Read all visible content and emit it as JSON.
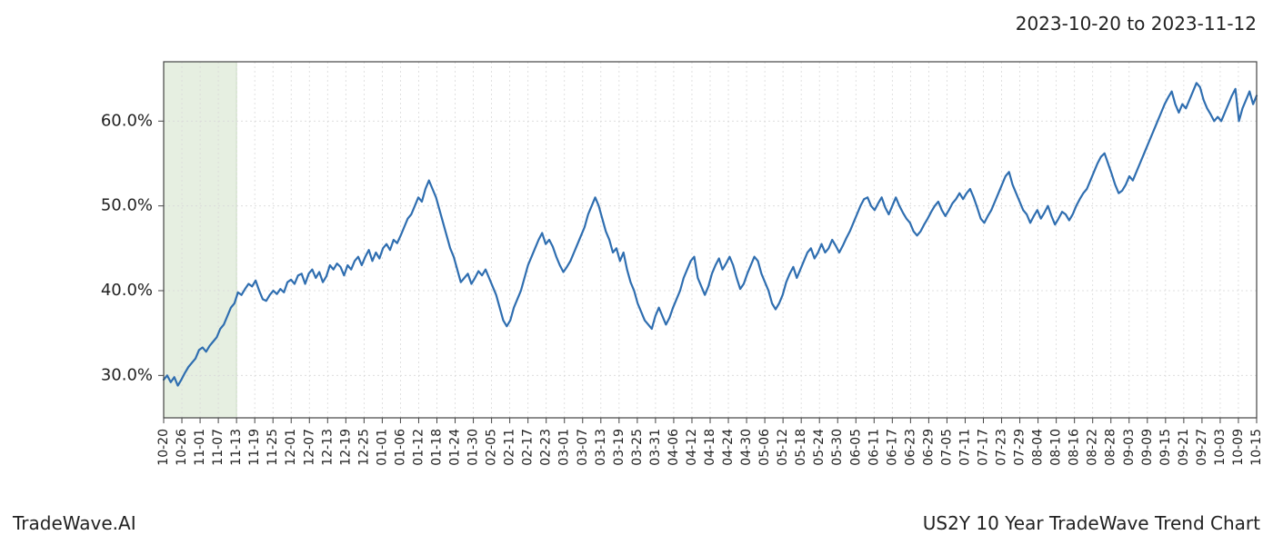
{
  "header": {
    "date_range": "2023-10-20 to 2023-11-12"
  },
  "footer": {
    "brand": "TradeWave.AI",
    "title": "US2Y 10 Year TradeWave Trend Chart"
  },
  "chart": {
    "type": "line",
    "background_color": "#ffffff",
    "plot_border_color": "#444444",
    "plot_border_width": 1.2,
    "grid_color": "#d9d9d9",
    "grid_dash": "2,3",
    "grid_width": 0.8,
    "line_color": "#2f6eb0",
    "line_width": 2.2,
    "highlight_band": {
      "fill": "#dde9d7",
      "fill_opacity": 0.75,
      "stroke": "#c6d9bf",
      "x_start_idx": 0,
      "x_end_idx": 4
    },
    "y_axis": {
      "min": 25,
      "max": 67,
      "ticks": [
        30,
        40,
        50,
        60
      ],
      "tick_format_suffix": ".0%",
      "label_fontsize": 18,
      "tick_labels": [
        "30.0%",
        "40.0%",
        "50.0%",
        "60.0%"
      ]
    },
    "x_axis": {
      "label_fontsize": 14,
      "rotation": -90,
      "tick_labels": [
        "10-20",
        "10-26",
        "11-01",
        "11-07",
        "11-13",
        "11-19",
        "11-25",
        "12-01",
        "12-07",
        "12-13",
        "12-19",
        "12-25",
        "01-01",
        "01-06",
        "01-12",
        "01-18",
        "01-24",
        "01-30",
        "02-05",
        "02-11",
        "02-17",
        "02-23",
        "03-01",
        "03-07",
        "03-13",
        "03-19",
        "03-25",
        "03-31",
        "04-06",
        "04-12",
        "04-18",
        "04-24",
        "04-30",
        "05-06",
        "05-12",
        "05-18",
        "05-24",
        "05-30",
        "06-05",
        "06-11",
        "06-17",
        "06-23",
        "06-29",
        "07-05",
        "07-11",
        "07-17",
        "07-23",
        "07-29",
        "08-04",
        "08-10",
        "08-16",
        "08-22",
        "08-28",
        "09-03",
        "09-09",
        "09-15",
        "09-21",
        "09-27",
        "10-03",
        "10-09",
        "10-15"
      ]
    },
    "series": {
      "name": "US2Y trend",
      "values": [
        29.5,
        30.0,
        29.2,
        29.8,
        28.8,
        29.5,
        30.3,
        31.0,
        31.5,
        32.0,
        33.0,
        33.3,
        32.8,
        33.5,
        34.0,
        34.5,
        35.5,
        36.0,
        37.0,
        38.0,
        38.5,
        39.8,
        39.5,
        40.2,
        40.8,
        40.5,
        41.2,
        40.0,
        39.0,
        38.8,
        39.5,
        40.0,
        39.6,
        40.2,
        39.8,
        41.0,
        41.3,
        40.8,
        41.8,
        42.0,
        40.8,
        42.0,
        42.5,
        41.5,
        42.2,
        41.0,
        41.7,
        43.0,
        42.5,
        43.2,
        42.8,
        41.8,
        43.0,
        42.5,
        43.5,
        44.0,
        43.0,
        44.0,
        44.8,
        43.5,
        44.5,
        43.8,
        45.0,
        45.5,
        44.8,
        46.0,
        45.6,
        46.5,
        47.5,
        48.5,
        49.0,
        50.0,
        51.0,
        50.5,
        52.0,
        53.0,
        52.0,
        51.0,
        49.5,
        48.0,
        46.5,
        45.0,
        44.0,
        42.5,
        41.0,
        41.5,
        42.0,
        40.8,
        41.5,
        42.3,
        41.8,
        42.5,
        41.5,
        40.5,
        39.5,
        38.0,
        36.5,
        35.8,
        36.5,
        38.0,
        39.0,
        40.0,
        41.5,
        43.0,
        44.0,
        45.0,
        46.0,
        46.8,
        45.5,
        46.0,
        45.2,
        44.0,
        43.0,
        42.2,
        42.8,
        43.5,
        44.5,
        45.5,
        46.5,
        47.5,
        49.0,
        50.0,
        51.0,
        50.0,
        48.5,
        47.0,
        46.0,
        44.5,
        45.0,
        43.5,
        44.5,
        42.5,
        41.0,
        40.0,
        38.5,
        37.5,
        36.5,
        36.0,
        35.5,
        37.0,
        38.0,
        37.0,
        36.0,
        36.8,
        38.0,
        39.0,
        40.0,
        41.5,
        42.5,
        43.5,
        44.0,
        41.5,
        40.5,
        39.5,
        40.5,
        42.0,
        43.0,
        43.8,
        42.5,
        43.2,
        44.0,
        43.0,
        41.5,
        40.2,
        40.8,
        42.0,
        43.0,
        44.0,
        43.5,
        42.0,
        41.0,
        40.0,
        38.5,
        37.8,
        38.5,
        39.5,
        41.0,
        42.0,
        42.8,
        41.5,
        42.5,
        43.5,
        44.5,
        45.0,
        43.8,
        44.5,
        45.5,
        44.5,
        45.0,
        46.0,
        45.3,
        44.5,
        45.3,
        46.2,
        47.0,
        48.0,
        49.0,
        50.0,
        50.8,
        51.0,
        50.0,
        49.5,
        50.3,
        51.0,
        49.8,
        49.0,
        50.0,
        51.0,
        50.0,
        49.2,
        48.5,
        48.0,
        47.0,
        46.5,
        47.0,
        47.8,
        48.5,
        49.3,
        50.0,
        50.5,
        49.5,
        48.8,
        49.5,
        50.3,
        50.8,
        51.5,
        50.8,
        51.5,
        52.0,
        51.0,
        49.8,
        48.5,
        48.0,
        48.8,
        49.5,
        50.5,
        51.5,
        52.5,
        53.5,
        54.0,
        52.5,
        51.5,
        50.5,
        49.5,
        49.0,
        48.0,
        48.8,
        49.5,
        48.5,
        49.2,
        50.0,
        48.8,
        47.8,
        48.5,
        49.3,
        49.0,
        48.3,
        49.0,
        50.0,
        50.8,
        51.5,
        52.0,
        53.0,
        54.0,
        55.0,
        55.8,
        56.2,
        55.0,
        53.8,
        52.5,
        51.5,
        51.8,
        52.5,
        53.5,
        53.0,
        54.0,
        55.0,
        56.0,
        57.0,
        58.0,
        59.0,
        60.0,
        61.0,
        62.0,
        62.8,
        63.5,
        62.0,
        61.0,
        62.0,
        61.5,
        62.5,
        63.5,
        64.5,
        64.0,
        62.5,
        61.5,
        60.8,
        60.0,
        60.5,
        60.0,
        61.0,
        62.0,
        63.0,
        63.8,
        60.0,
        61.5,
        62.5,
        63.5,
        62.0,
        63.0
      ]
    }
  }
}
